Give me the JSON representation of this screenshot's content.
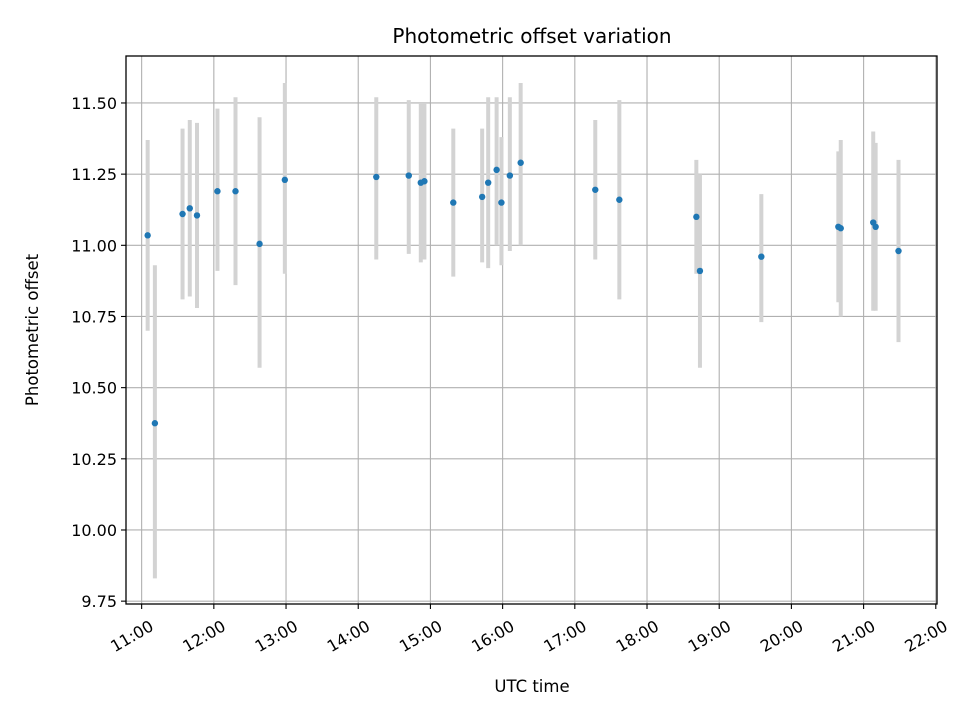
{
  "chart_data": {
    "type": "scatter",
    "title": "Photometric offset variation",
    "xlabel": "UTC time",
    "ylabel": "Photometric offset",
    "x_axis_kind": "time-of-day",
    "xlim": [
      "10:47",
      "22:01"
    ],
    "ylim": [
      9.74,
      11.665
    ],
    "grid": true,
    "x_ticks": [
      "11:00",
      "12:00",
      "13:00",
      "14:00",
      "15:00",
      "16:00",
      "17:00",
      "18:00",
      "19:00",
      "20:00",
      "21:00",
      "22:00"
    ],
    "y_ticks": [
      "9.75",
      "10.00",
      "10.25",
      "10.50",
      "10.75",
      "11.00",
      "11.25",
      "11.50"
    ],
    "marker_color": "#1f77b4",
    "errorbar_color": "#d3d3d3",
    "series": [
      {
        "points": [
          {
            "t": "11:05",
            "y": 11.035,
            "lo": 10.7,
            "hi": 11.37
          },
          {
            "t": "11:11",
            "y": 10.375,
            "lo": 9.83,
            "hi": 10.93
          },
          {
            "t": "11:34",
            "y": 11.11,
            "lo": 10.81,
            "hi": 11.41
          },
          {
            "t": "11:40",
            "y": 11.13,
            "lo": 10.82,
            "hi": 11.44
          },
          {
            "t": "11:46",
            "y": 11.105,
            "lo": 10.78,
            "hi": 11.43
          },
          {
            "t": "12:03",
            "y": 11.19,
            "lo": 10.91,
            "hi": 11.48
          },
          {
            "t": "12:18",
            "y": 11.19,
            "lo": 10.86,
            "hi": 11.52
          },
          {
            "t": "12:38",
            "y": 11.005,
            "lo": 10.57,
            "hi": 11.45
          },
          {
            "t": "12:59",
            "y": 11.23,
            "lo": 10.9,
            "hi": 11.57
          },
          {
            "t": "14:15",
            "y": 11.24,
            "lo": 10.95,
            "hi": 11.52
          },
          {
            "t": "14:42",
            "y": 11.245,
            "lo": 10.97,
            "hi": 11.51
          },
          {
            "t": "14:52",
            "y": 11.22,
            "lo": 10.94,
            "hi": 11.5
          },
          {
            "t": "14:55",
            "y": 11.225,
            "lo": 10.95,
            "hi": 11.5
          },
          {
            "t": "15:19",
            "y": 11.15,
            "lo": 10.89,
            "hi": 11.41
          },
          {
            "t": "15:43",
            "y": 11.17,
            "lo": 10.94,
            "hi": 11.41
          },
          {
            "t": "15:48",
            "y": 11.22,
            "lo": 10.92,
            "hi": 11.52
          },
          {
            "t": "15:55",
            "y": 11.265,
            "lo": 11.0,
            "hi": 11.52
          },
          {
            "t": "15:59",
            "y": 11.15,
            "lo": 10.93,
            "hi": 11.38
          },
          {
            "t": "16:06",
            "y": 11.245,
            "lo": 10.98,
            "hi": 11.52
          },
          {
            "t": "16:15",
            "y": 11.29,
            "lo": 11.0,
            "hi": 11.57
          },
          {
            "t": "17:17",
            "y": 11.195,
            "lo": 10.95,
            "hi": 11.44
          },
          {
            "t": "17:37",
            "y": 11.16,
            "lo": 10.81,
            "hi": 11.51
          },
          {
            "t": "18:41",
            "y": 11.1,
            "lo": 10.9,
            "hi": 11.3
          },
          {
            "t": "18:44",
            "y": 10.91,
            "lo": 10.57,
            "hi": 11.25
          },
          {
            "t": "19:35",
            "y": 10.96,
            "lo": 10.73,
            "hi": 11.18
          },
          {
            "t": "20:39",
            "y": 11.065,
            "lo": 10.8,
            "hi": 11.33
          },
          {
            "t": "20:41",
            "y": 11.06,
            "lo": 10.75,
            "hi": 11.37
          },
          {
            "t": "21:08",
            "y": 11.08,
            "lo": 10.77,
            "hi": 11.4
          },
          {
            "t": "21:10",
            "y": 11.065,
            "lo": 10.77,
            "hi": 11.36
          },
          {
            "t": "21:29",
            "y": 10.98,
            "lo": 10.66,
            "hi": 11.3
          }
        ]
      }
    ]
  }
}
